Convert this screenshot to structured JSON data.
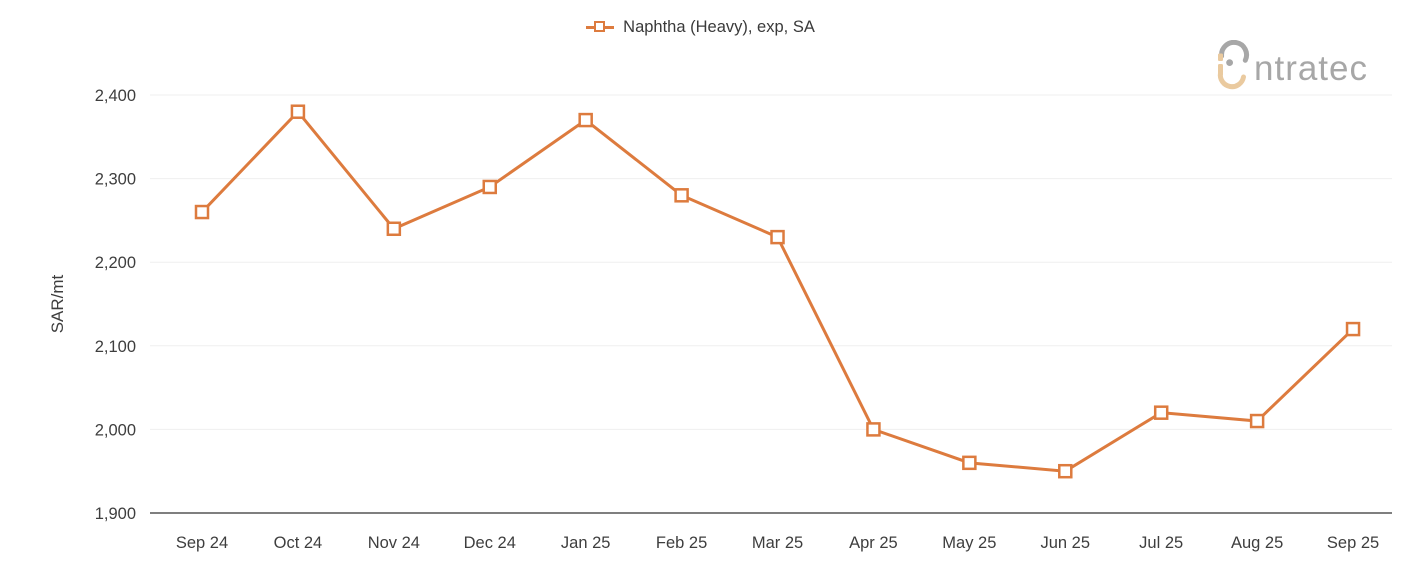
{
  "legend": {
    "label": "Naphtha (Heavy), exp, SA"
  },
  "logo": {
    "brand_text": "ntratec",
    "gray": "#a7a7a7",
    "tan": "#eaca9f"
  },
  "chart_data": {
    "type": "line",
    "title": "",
    "xlabel": "",
    "ylabel": "SAR/mt",
    "categories": [
      "Sep 24",
      "Oct 24",
      "Nov 24",
      "Dec 24",
      "Jan 25",
      "Feb 25",
      "Mar 25",
      "Apr 25",
      "May 25",
      "Jun 25",
      "Jul 25",
      "Aug 25",
      "Sep 25"
    ],
    "series": [
      {
        "name": "Naphtha (Heavy), exp, SA",
        "values": [
          2260,
          2380,
          2240,
          2290,
          2370,
          2280,
          2230,
          2000,
          1960,
          1950,
          2020,
          2010,
          2120
        ]
      }
    ],
    "ylim": [
      1900,
      2400
    ],
    "yticks": [
      1900,
      2000,
      2100,
      2200,
      2300,
      2400
    ],
    "grid": "horizontal",
    "legend_position": "top-center",
    "marker_style": "hollow-square",
    "colors": {
      "line": "#dd7b3e",
      "marker_fill": "#ffffff",
      "grid": "#efefef",
      "axis": "#7f7f7f",
      "text": "#3e3e3e"
    }
  }
}
